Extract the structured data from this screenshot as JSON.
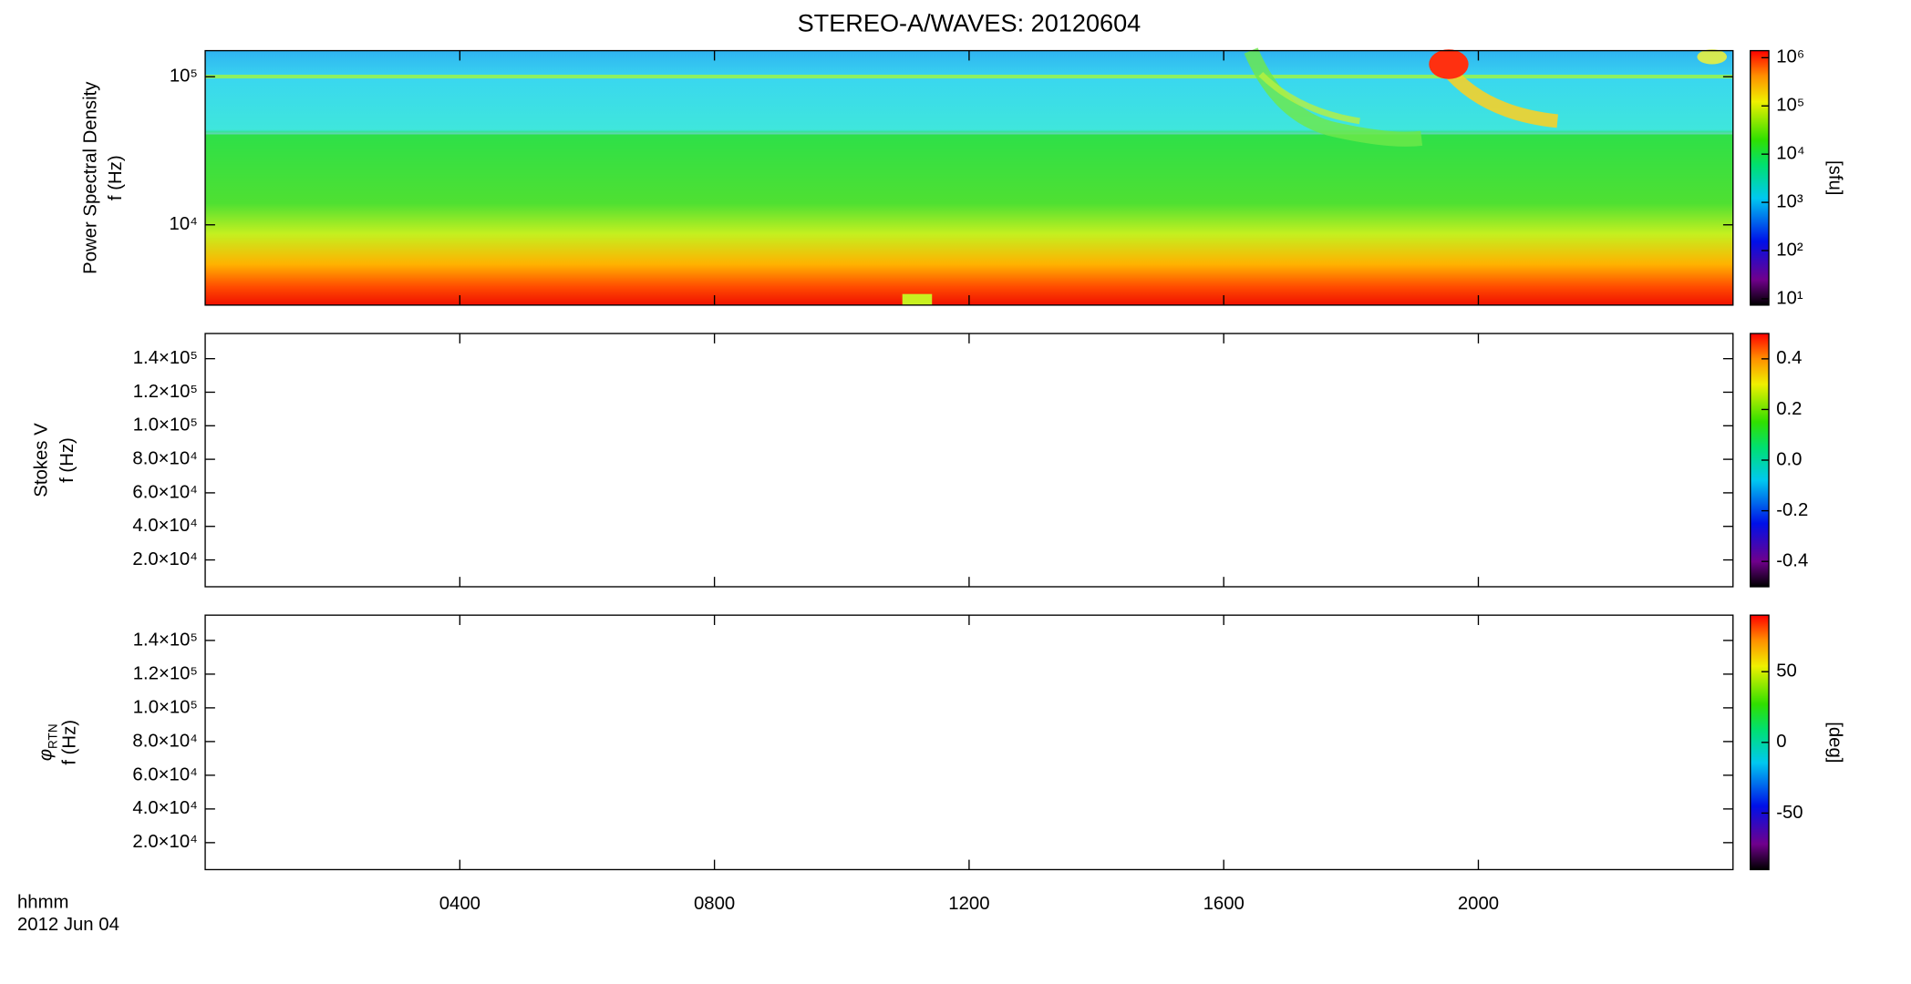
{
  "title": "STEREO-A/WAVES: 20120604",
  "time_axis": {
    "label": "hhmm",
    "date": "2012 Jun 04",
    "xlim": [
      0,
      24
    ],
    "xticks": [
      {
        "value": 4,
        "label": "0400"
      },
      {
        "value": 8,
        "label": "0800"
      },
      {
        "value": 12,
        "label": "1200"
      },
      {
        "value": 16,
        "label": "1600"
      },
      {
        "value": 20,
        "label": "2000"
      }
    ]
  },
  "chart_data": [
    {
      "type": "spectrogram",
      "ylabel": [
        "Power Spectral Density",
        "f (Hz)"
      ],
      "ylog": true,
      "ylim": [
        2870,
        150000
      ],
      "yticks": [
        {
          "value": 10000,
          "label": "10⁴"
        },
        {
          "value": 100000,
          "label": "10⁵"
        }
      ],
      "colorbar": {
        "label": "[sfu]",
        "log": true,
        "lim": [
          7.4,
          1400000
        ],
        "ticks": [
          {
            "value": 10,
            "label": "10¹"
          },
          {
            "value": 100,
            "label": "10²"
          },
          {
            "value": 1000,
            "label": "10³"
          },
          {
            "value": 10000,
            "label": "10⁴"
          },
          {
            "value": 100000,
            "label": "10⁵"
          },
          {
            "value": 1000000,
            "label": "10⁶"
          }
        ]
      }
    },
    {
      "type": "spectrogram",
      "ylabel": [
        "Stokes V",
        "f (Hz)"
      ],
      "ylog": false,
      "ylim": [
        4000,
        155000
      ],
      "yticks": [
        {
          "value": 20000,
          "label": "2.0×10⁴"
        },
        {
          "value": 40000,
          "label": "4.0×10⁴"
        },
        {
          "value": 60000,
          "label": "6.0×10⁴"
        },
        {
          "value": 80000,
          "label": "8.0×10⁴"
        },
        {
          "value": 100000,
          "label": "1.0×10⁵"
        },
        {
          "value": 120000,
          "label": "1.2×10⁵"
        },
        {
          "value": 140000,
          "label": "1.4×10⁵"
        }
      ],
      "colorbar": {
        "log": false,
        "lim": [
          -0.5,
          0.5
        ],
        "ticks": [
          -0.4,
          -0.2,
          {
            "value": 0,
            "label": "0.0"
          },
          0.2,
          0.4
        ]
      }
    },
    {
      "type": "spectrogram",
      "ylabel": [
        {
          "symbol": "φ",
          "sub": "RTN"
        },
        "f (Hz)"
      ],
      "ylog": false,
      "ylim": [
        4000,
        155000
      ],
      "yticks": [
        {
          "value": 20000,
          "label": "2.0×10⁴"
        },
        {
          "value": 40000,
          "label": "4.0×10⁴"
        },
        {
          "value": 60000,
          "label": "6.0×10⁴"
        },
        {
          "value": 80000,
          "label": "8.0×10⁴"
        },
        {
          "value": 100000,
          "label": "1.0×10⁵"
        },
        {
          "value": 120000,
          "label": "1.2×10⁵"
        },
        {
          "value": 140000,
          "label": "1.4×10⁵"
        }
      ],
      "colorbar": {
        "label": "[deg]",
        "log": false,
        "lim": [
          -90,
          90
        ],
        "ticks": [
          -50,
          0,
          50
        ]
      }
    }
  ]
}
